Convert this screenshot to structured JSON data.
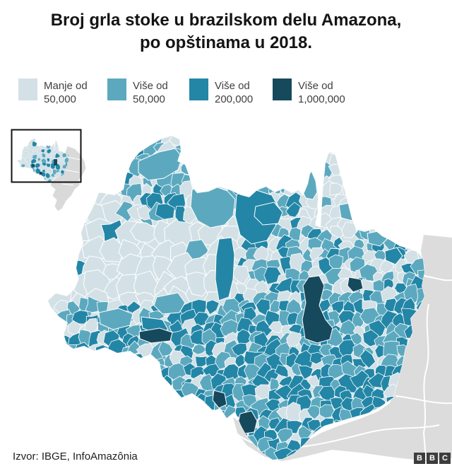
{
  "title": {
    "line1": "Broj grla stoke u brazilskom delu Amazona,",
    "line2": "po opštinama u 2018."
  },
  "legend": {
    "items": [
      {
        "line1": "Manje od",
        "line2": "50,000",
        "color": "#d3e1e6"
      },
      {
        "line1": "Više od",
        "line2": "50,000",
        "color": "#5ca9bf"
      },
      {
        "line1": "Više od",
        "line2": "200,000",
        "color": "#2386a6"
      },
      {
        "line1": "Više od",
        "line2": "1,000,000",
        "color": "#17495d"
      }
    ]
  },
  "map": {
    "background": "#ffffff",
    "neighbor_color": "#dcdcdc",
    "neighbor_border": "#ffffff",
    "municipality_border": "#ffffff",
    "category_colors": [
      "#d3e1e6",
      "#5ca9bf",
      "#2386a6",
      "#17495d"
    ],
    "inset": {
      "border_color": "#111111",
      "brazil_color": "#d9d9d9"
    }
  },
  "source": {
    "label": "Izvor: IBGE, InfoAmazônia"
  },
  "branding": {
    "name": "BBC",
    "letters": [
      "B",
      "B",
      "C"
    ],
    "block_color": "#3d3d3d",
    "letter_color": "#ffffff"
  }
}
